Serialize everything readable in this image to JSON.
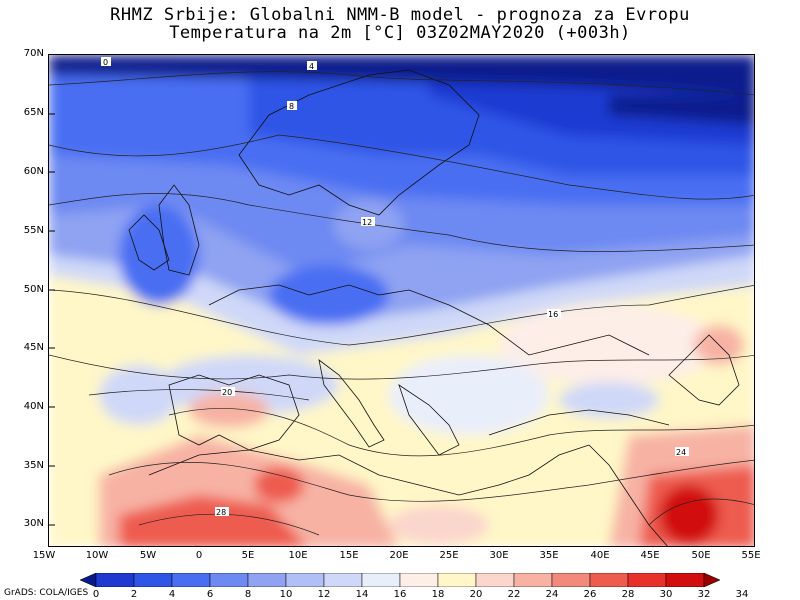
{
  "title_line1": "RHMZ Srbije: Globalni NMM-B model - prognoza za Evropu",
  "title_line2": "Temperatura na 2m [°C] 03Z02MAY2020 (+003h)",
  "credit": "GrADS: COLA/IGES",
  "lat_labels": [
    "70N",
    "65N",
    "60N",
    "55N",
    "50N",
    "45N",
    "40N",
    "35N",
    "30N"
  ],
  "lon_labels": [
    "15W",
    "10W",
    "5W",
    "0",
    "5E",
    "10E",
    "15E",
    "20E",
    "25E",
    "30E",
    "35E",
    "40E",
    "45E",
    "50E",
    "55E"
  ],
  "colorbar": {
    "ticks": [
      "0",
      "2",
      "4",
      "6",
      "8",
      "10",
      "12",
      "14",
      "16",
      "18",
      "20",
      "22",
      "24",
      "26",
      "28",
      "30",
      "32",
      "34"
    ],
    "colors": [
      "#0a1a8c",
      "#1f3ad1",
      "#2f55e6",
      "#4a6ef2",
      "#6d89f2",
      "#8fa3f2",
      "#b0bff5",
      "#cfd8f8",
      "#e9eefb",
      "#fdeee8",
      "#fff7c8",
      "#fbd6cc",
      "#f7b2a4",
      "#f2897a",
      "#ee5c50",
      "#e8302a",
      "#d10d0d",
      "#990000"
    ]
  },
  "contour_labels": [
    "0",
    "4",
    "8",
    "12",
    "16",
    "20",
    "24",
    "28"
  ],
  "chart_data": {
    "type": "heatmap",
    "variable": "Temperatura na 2m [°C]",
    "valid_time": "03Z02MAY2020 (+003h)",
    "lon_range": [
      "15W",
      "55E"
    ],
    "lat_range": [
      "28N",
      "70N"
    ],
    "legend_values": [
      0,
      2,
      4,
      6,
      8,
      10,
      12,
      14,
      16,
      18,
      20,
      22,
      24,
      26,
      28,
      30,
      32,
      34
    ],
    "contour_values": [
      0,
      4,
      8,
      12,
      16,
      20,
      24,
      28
    ]
  }
}
